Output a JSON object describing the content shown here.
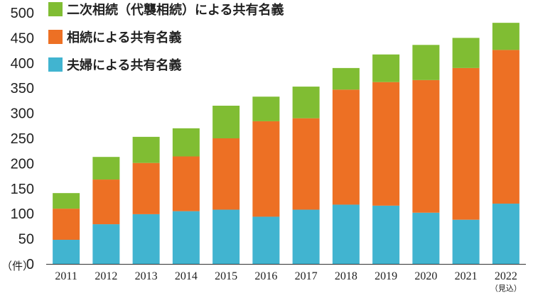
{
  "chart_data": {
    "type": "bar",
    "stacked": true,
    "categories": [
      "2011",
      "2012",
      "2013",
      "2014",
      "2015",
      "2016",
      "2017",
      "2018",
      "2019",
      "2020",
      "2021",
      "2022"
    ],
    "category_note": {
      "category": "2022",
      "text": "（見込）"
    },
    "series": [
      {
        "name": "夫婦による共有名義",
        "color": "#41b4d0",
        "values": [
          48,
          79,
          99,
          105,
          108,
          94,
          108,
          118,
          116,
          102,
          88,
          120
        ]
      },
      {
        "name": "相続による共有名義",
        "color": "#ed7024",
        "values": [
          62,
          89,
          102,
          109,
          142,
          190,
          182,
          229,
          246,
          264,
          302,
          306
        ]
      },
      {
        "name": "二次相続（代襲相続）による共有名義",
        "color": "#80bd33",
        "values": [
          31,
          45,
          52,
          56,
          65,
          49,
          63,
          43,
          55,
          70,
          60,
          54
        ]
      }
    ],
    "ylim": [
      0,
      500
    ],
    "yticks": [
      0,
      50,
      100,
      150,
      200,
      250,
      300,
      350,
      400,
      450,
      500
    ],
    "ylabel": "（件）",
    "grid": false,
    "legend_position": "top-left"
  }
}
